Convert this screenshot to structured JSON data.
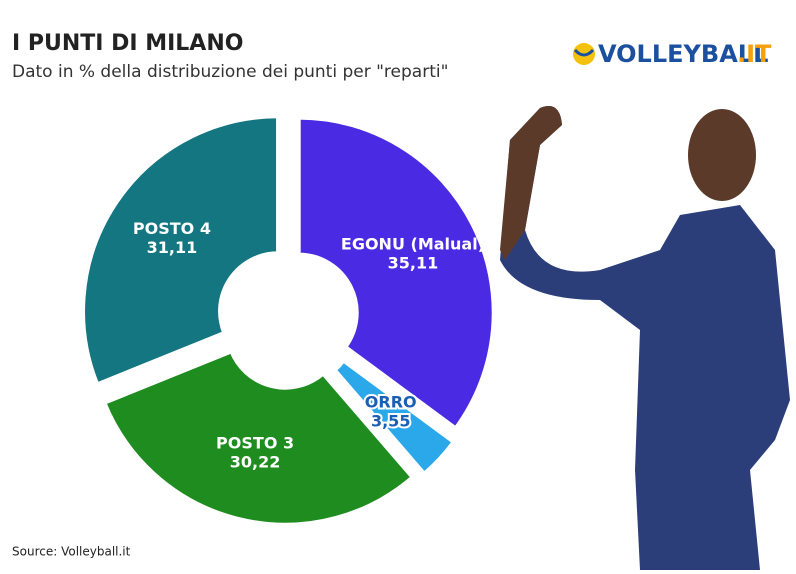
{
  "chart_data": {
    "type": "donut",
    "title": "I PUNTI DI MILANO",
    "subtitle": "Dato in % della distribuzione dei punti per \"reparti\"",
    "logo": [
      "VOLLEYBALL",
      ".IT"
    ],
    "source": "Source: Volleyball.it",
    "categories": [
      "EGONU (Malual)",
      "ORRO",
      "POSTO 3",
      "POSTO 4"
    ],
    "values": [
      35.11,
      3.55,
      30.22,
      31.11
    ],
    "value_labels": [
      "35,11",
      "3,55",
      "30,22",
      "31,11"
    ],
    "colors": [
      "#4a2ae3",
      "#2aa8ea",
      "#1e8c1e",
      "#137681"
    ]
  }
}
